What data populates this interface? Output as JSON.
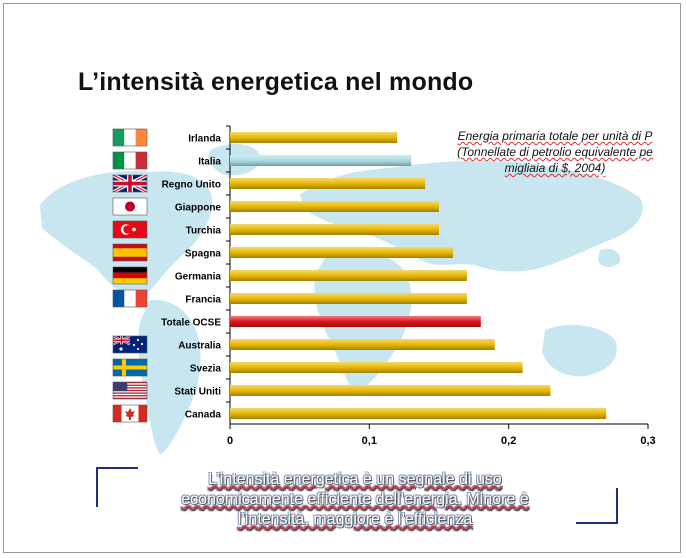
{
  "slide": {
    "title": "L’intensità energetica nel mondo",
    "note_lines": [
      "Energia primaria totale per unità di P",
      "(Tonnellate di petrolio equivalente pe",
      "migliaia di  $, 2004)"
    ],
    "caption_lines": [
      "L’intensità energetica è un segnale di uso",
      "economicamente efficiente dell’energia. Minore è",
      "l’intensità, maggiore è l’efficienza"
    ]
  },
  "colors": {
    "bar_default": "#e8b800",
    "bar_italia": "#a9dde3",
    "bar_ocse": "#e0141a",
    "map": "#c8e6f0"
  },
  "chart_data": {
    "type": "bar",
    "orientation": "horizontal",
    "categories": [
      "Irlanda",
      "Italia",
      "Regno Unito",
      "Giappone",
      "Turchia",
      "Spagna",
      "Germania",
      "Francia",
      "Totale OCSE",
      "Australia",
      "Svezia",
      "Stati Uniti",
      "Canada"
    ],
    "values": [
      0.12,
      0.13,
      0.14,
      0.15,
      0.15,
      0.16,
      0.17,
      0.17,
      0.18,
      0.19,
      0.21,
      0.23,
      0.27
    ],
    "xlim": [
      0,
      0.3
    ],
    "xticks": [
      "0",
      "0,1",
      "0,2",
      "0,3"
    ],
    "xtick_values": [
      0,
      0.1,
      0.2,
      0.3
    ],
    "grid": false,
    "legend": "none",
    "highlighted": {
      "Italia": "bar_italia",
      "Totale OCSE": "bar_ocse"
    },
    "flags": [
      "irlanda-flag",
      "italia-flag",
      "regno-unito-flag",
      "giappone-flag",
      "turchia-flag",
      "spagna-flag",
      "germania-flag",
      "francia-flag",
      "",
      "australia-flag",
      "svezia-flag",
      "stati-uniti-flag",
      "canada-flag"
    ]
  }
}
